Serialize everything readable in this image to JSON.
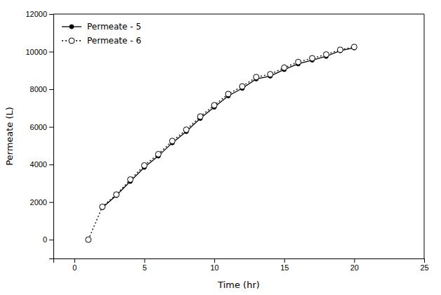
{
  "chart_data": {
    "type": "line",
    "xlabel": "Time (hr)",
    "ylabel": "Permeate (L)",
    "x": [
      1,
      2,
      3,
      4,
      5,
      6,
      7,
      8,
      9,
      10,
      11,
      12,
      13,
      14,
      15,
      16,
      17,
      18,
      19,
      20
    ],
    "series": [
      {
        "name": "Permeate - 5",
        "color": "#000000",
        "line_style": "solid",
        "marker": "circle",
        "values": [
          null,
          1700,
          2350,
          3100,
          3850,
          4450,
          5150,
          5750,
          6450,
          7050,
          7650,
          8050,
          8550,
          8700,
          9050,
          9350,
          9550,
          9750,
          10050,
          10200
        ]
      },
      {
        "name": "Permeate - 6",
        "color": "#000000",
        "line_style": "dotted",
        "marker": "open-circle",
        "values": [
          0,
          1750,
          2400,
          3200,
          3950,
          4550,
          5250,
          5850,
          6550,
          7150,
          7750,
          8150,
          8650,
          8800,
          9150,
          9450,
          9650,
          9850,
          10100,
          10250
        ]
      }
    ],
    "xlim": [
      -1.5,
      25
    ],
    "ylim": [
      -1000,
      12000
    ],
    "xticks": [
      0,
      5,
      10,
      15,
      20,
      25
    ],
    "yticks": [
      0,
      2000,
      4000,
      6000,
      8000,
      10000,
      12000
    ],
    "grid": false,
    "legend": "upper-left"
  }
}
